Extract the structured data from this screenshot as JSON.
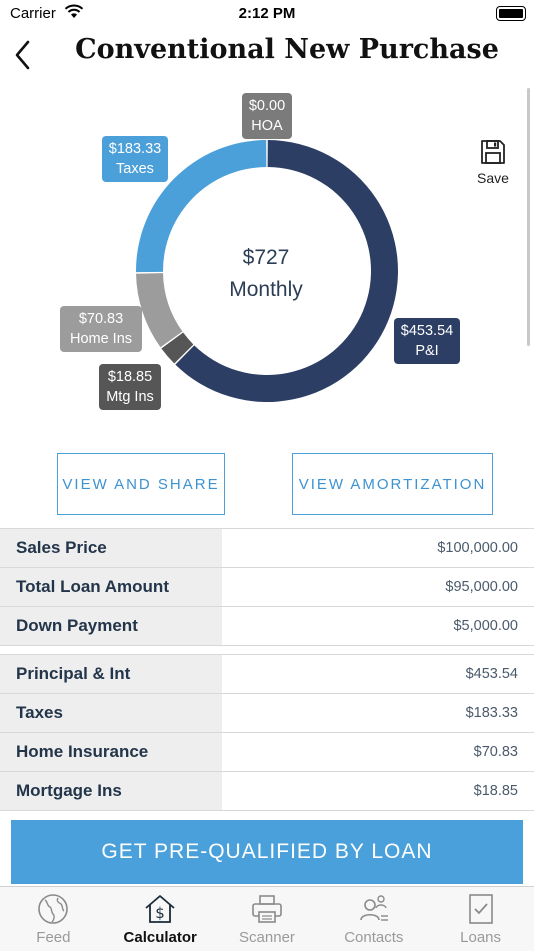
{
  "status_bar": {
    "carrier": "Carrier",
    "time": "2:12 PM"
  },
  "header": {
    "title": "Conventional New Purchase"
  },
  "chart_data": {
    "type": "pie",
    "center_amount": "$727",
    "center_label": "Monthly",
    "slices": [
      {
        "name": "P&I",
        "label": "$453.54",
        "value": 453.54,
        "color": "#2d3e64"
      },
      {
        "name": "Mtg Ins",
        "label": "$18.85",
        "value": 18.85,
        "color": "#565656"
      },
      {
        "name": "Home Ins",
        "label": "$70.83",
        "value": 70.83,
        "color": "#9c9c9c"
      },
      {
        "name": "Taxes",
        "label": "$183.33",
        "value": 183.33,
        "color": "#4ba0da"
      },
      {
        "name": "HOA",
        "label": "$0.00",
        "value": 0.0,
        "color": "#7b7b7b"
      }
    ]
  },
  "save_label": "Save",
  "buttons": {
    "view_share": "VIEW AND SHARE",
    "view_amortization": "VIEW AMORTIZATION"
  },
  "loan_table": [
    {
      "label": "Sales Price",
      "value": "$100,000.00"
    },
    {
      "label": "Total Loan Amount",
      "value": "$95,000.00"
    },
    {
      "label": "Down Payment",
      "value": "$5,000.00"
    }
  ],
  "payment_table": [
    {
      "label": "Principal & Int",
      "value": "$453.54"
    },
    {
      "label": "Taxes",
      "value": "$183.33"
    },
    {
      "label": "Home Insurance",
      "value": "$70.83"
    },
    {
      "label": "Mortgage Ins",
      "value": "$18.85"
    }
  ],
  "prequal_button": "GET PRE-QUALIFIED BY LOAN",
  "tabs": [
    {
      "label": "Feed",
      "icon": "globe-icon"
    },
    {
      "label": "Calculator",
      "icon": "house-dollar-icon"
    },
    {
      "label": "Scanner",
      "icon": "printer-icon"
    },
    {
      "label": "Contacts",
      "icon": "contacts-icon"
    },
    {
      "label": "Loans",
      "icon": "document-check-icon"
    }
  ],
  "active_tab": "Calculator"
}
